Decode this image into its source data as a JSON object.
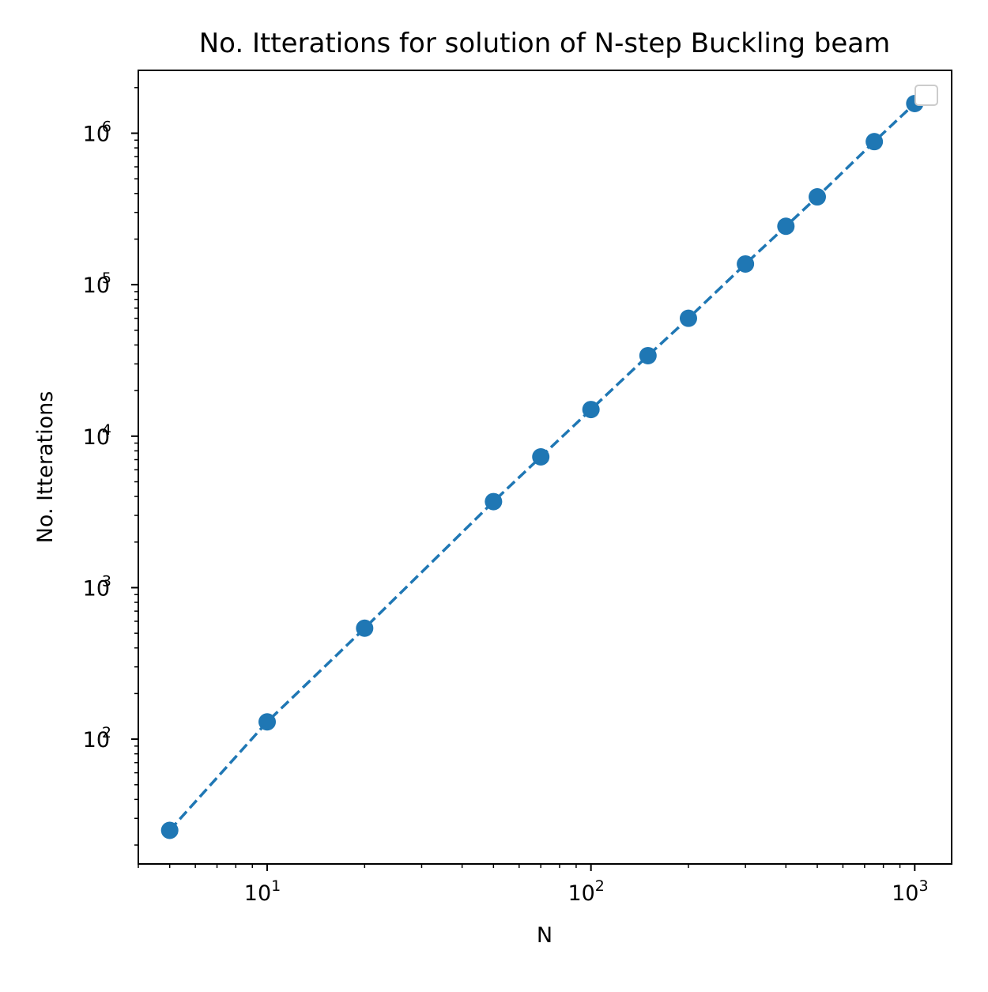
{
  "chart_data": {
    "type": "line",
    "title": "No. Itterations for solution of N-step Buckling beam",
    "xlabel": "N",
    "ylabel": "No. Itterations",
    "xscale": "log",
    "yscale": "log",
    "xlim": [
      4,
      1300
    ],
    "ylim": [
      15,
      2600000
    ],
    "grid": false,
    "legend": {
      "placement": "top-right",
      "entries": []
    },
    "x_ticks": [
      {
        "base": "10",
        "exp": "1"
      },
      {
        "base": "10",
        "exp": "2"
      },
      {
        "base": "10",
        "exp": "3"
      }
    ],
    "y_ticks": [
      {
        "base": "10",
        "exp": "2"
      },
      {
        "base": "10",
        "exp": "3"
      },
      {
        "base": "10",
        "exp": "4"
      },
      {
        "base": "10",
        "exp": "5"
      },
      {
        "base": "10",
        "exp": "6"
      }
    ],
    "series": [
      {
        "color": "#1f77b4",
        "line_style": "dashed",
        "marker": "circle",
        "x": [
          5,
          10,
          20,
          50,
          70,
          100,
          150,
          200,
          300,
          400,
          500,
          750,
          1000
        ],
        "y": [
          25,
          130,
          540,
          3700,
          7300,
          15000,
          34000,
          60000,
          137000,
          243000,
          380000,
          880000,
          1570000
        ]
      }
    ]
  }
}
